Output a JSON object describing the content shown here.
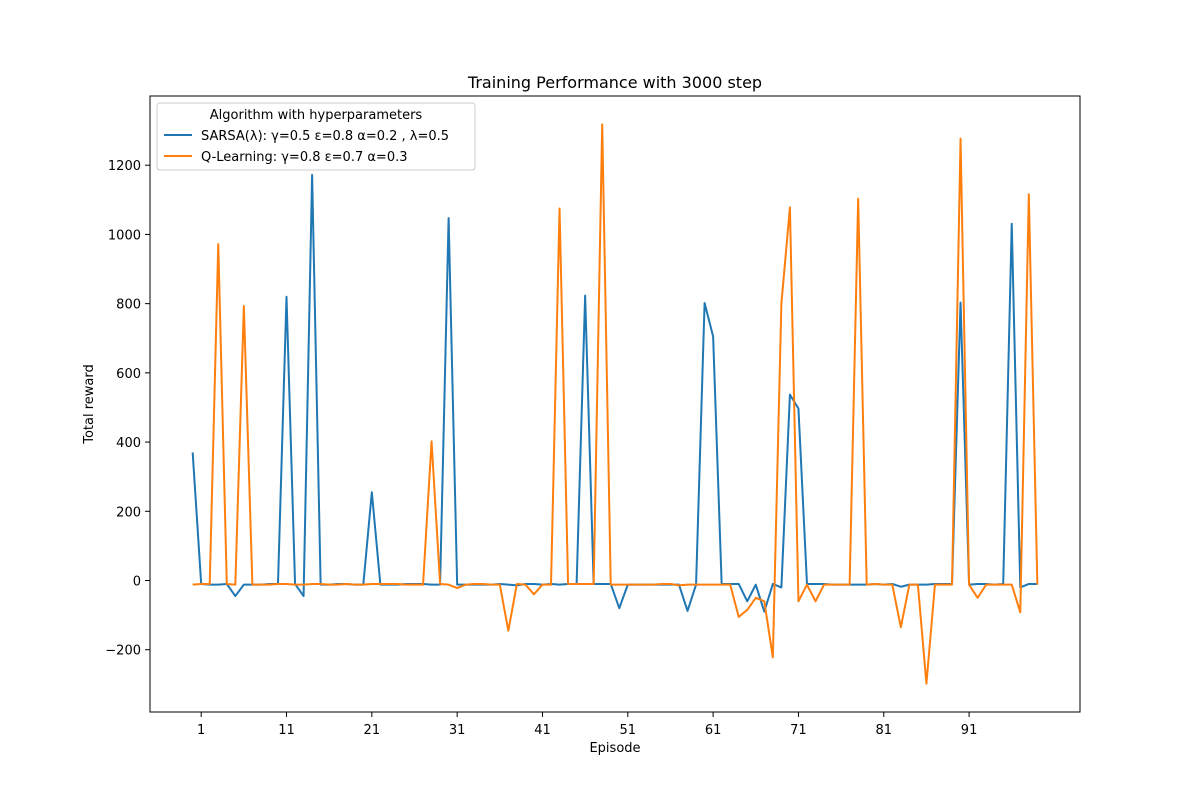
{
  "chart_data": {
    "type": "line",
    "title": "Training Performance with 3000 step",
    "xlabel": "Episode",
    "ylabel": "Total reward",
    "xlim": [
      -5,
      104
    ],
    "ylim": [
      -380,
      1400
    ],
    "xticks": [
      1,
      11,
      21,
      31,
      41,
      51,
      61,
      71,
      81,
      91
    ],
    "yticks": [
      -200,
      0,
      200,
      400,
      600,
      800,
      1000,
      1200
    ],
    "grid": false,
    "legend": {
      "title": "Algorithm with hyperparameters",
      "placement": "upper-left"
    },
    "x_start": 0,
    "series": [
      {
        "name": "SARSA(λ): γ=0.5 ε=0.8 α=0.2 , λ=0.5",
        "color": "#1f77b4",
        "values": [
          370,
          -10,
          -12,
          -12,
          -10,
          -45,
          -12,
          -12,
          -12,
          -10,
          -10,
          820,
          -10,
          -45,
          1172,
          -12,
          -12,
          -10,
          -10,
          -12,
          -12,
          255,
          -12,
          -12,
          -12,
          -10,
          -10,
          -10,
          -12,
          -12,
          1047,
          -12,
          -12,
          -12,
          -12,
          -12,
          -10,
          -12,
          -14,
          -10,
          -10,
          -12,
          -10,
          -12,
          -10,
          -10,
          823,
          -10,
          -10,
          -10,
          -80,
          -12,
          -12,
          -12,
          -12,
          -12,
          -12,
          -12,
          -88,
          -12,
          802,
          705,
          -10,
          -10,
          -10,
          -60,
          -12,
          -90,
          -10,
          -20,
          537,
          497,
          -10,
          -10,
          -10,
          -12,
          -12,
          -12,
          -12,
          -12,
          -10,
          -12,
          -10,
          -18,
          -12,
          -12,
          -12,
          -10,
          -10,
          -10,
          803,
          -12,
          -10,
          -10,
          -12,
          -10,
          1031,
          -20,
          -10,
          -10
        ]
      },
      {
        "name": "Q-Learning: γ=0.8 ε=0.7 α=0.3",
        "color": "#ff7f0e",
        "values": [
          -12,
          -10,
          -10,
          972,
          -10,
          -12,
          793,
          -12,
          -12,
          -12,
          -10,
          -10,
          -12,
          -12,
          -10,
          -10,
          -12,
          -12,
          -10,
          -12,
          -12,
          -10,
          -10,
          -10,
          -10,
          -12,
          -12,
          -12,
          402,
          -10,
          -12,
          -22,
          -12,
          -10,
          -10,
          -12,
          -12,
          -145,
          -10,
          -12,
          -40,
          -12,
          -12,
          1075,
          -10,
          -10,
          -10,
          -10,
          1318,
          -12,
          -12,
          -12,
          -12,
          -12,
          -12,
          -10,
          -10,
          -14,
          -12,
          -12,
          -12,
          -12,
          -12,
          -12,
          -105,
          -85,
          -50,
          -60,
          -222,
          800,
          1078,
          -60,
          -12,
          -60,
          -12,
          -12,
          -12,
          -12,
          1103,
          -12,
          -10,
          -12,
          -12,
          -135,
          -12,
          -12,
          -298,
          -12,
          -12,
          -12,
          1277,
          -12,
          -50,
          -12,
          -12,
          -12,
          -12,
          -92,
          1116,
          -12
        ]
      }
    ]
  }
}
